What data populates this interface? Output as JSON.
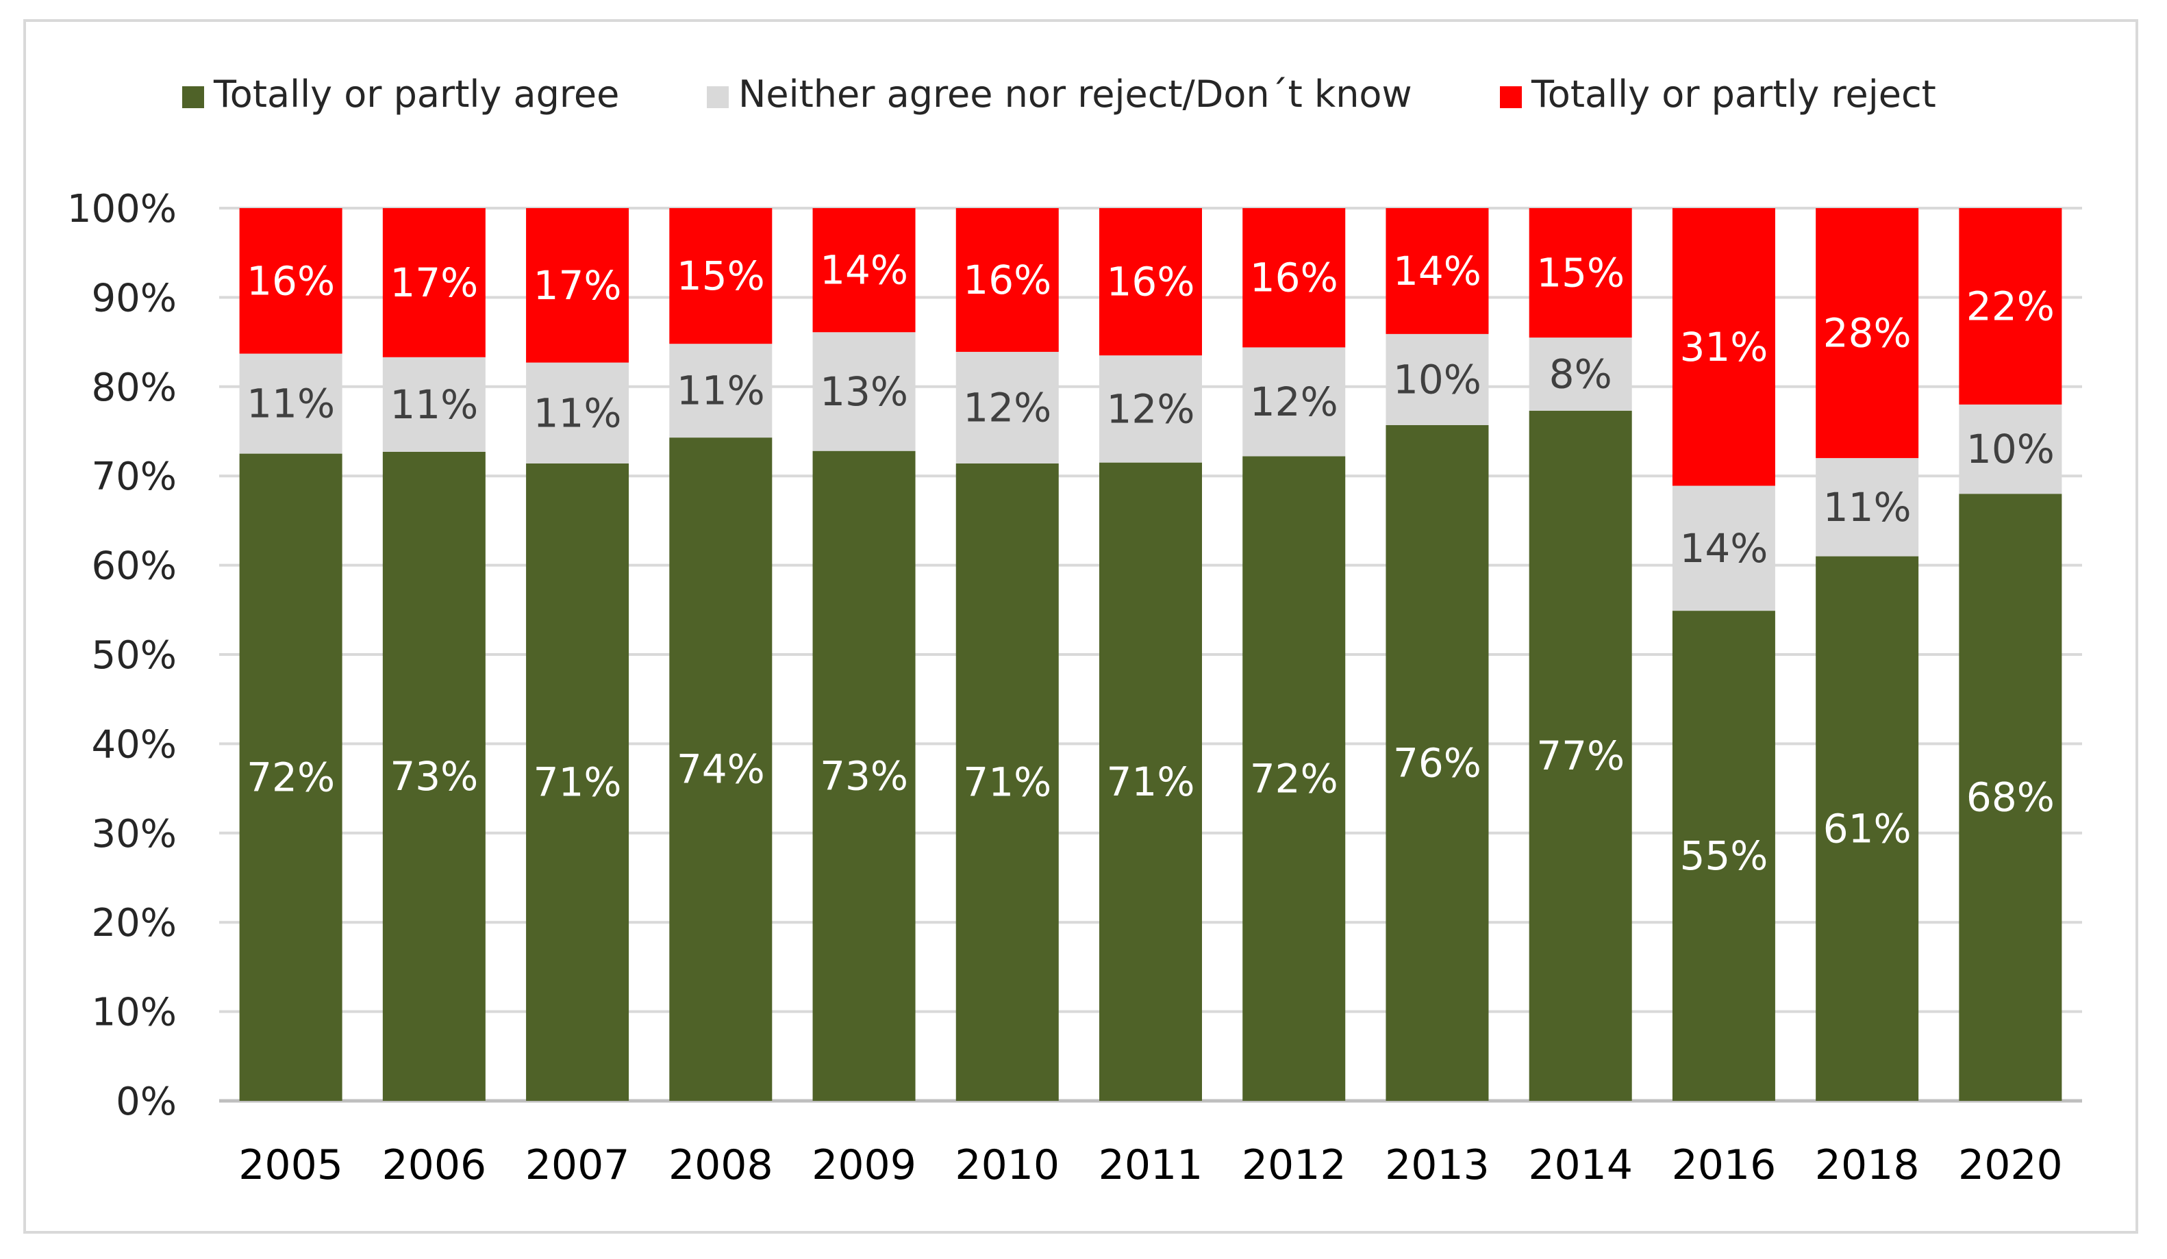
{
  "chart_data": {
    "type": "bar",
    "stacked": true,
    "title": "",
    "xlabel": "",
    "ylabel": "",
    "ylim": [
      0,
      100
    ],
    "ytick_labels": [
      "0%",
      "10%",
      "20%",
      "30%",
      "40%",
      "50%",
      "60%",
      "70%",
      "80%",
      "90%",
      "100%"
    ],
    "grid": true,
    "legend_position": "top",
    "categories": [
      "2005",
      "2006",
      "2007",
      "2008",
      "2009",
      "2010",
      "2011",
      "2012",
      "2013",
      "2014",
      "2016",
      "2018",
      "2020"
    ],
    "series": [
      {
        "name": "Totally or partly agree",
        "color": "#4f6228",
        "label_color": "#ffffff",
        "values": [
          72.5,
          72.7,
          71.4,
          74.3,
          72.8,
          71.4,
          71.5,
          72.2,
          75.7,
          77.3,
          54.9,
          61.0,
          68.0
        ],
        "labels": [
          "72%",
          "73%",
          "71%",
          "74%",
          "73%",
          "71%",
          "71%",
          "72%",
          "76%",
          "77%",
          "55%",
          "61%",
          "68%"
        ]
      },
      {
        "name": "Neither agree nor reject/Don´t know",
        "color": "#d9d9d9",
        "label_color": "#404040",
        "values": [
          11.2,
          10.6,
          11.3,
          10.5,
          13.3,
          12.5,
          12.0,
          12.2,
          10.2,
          8.2,
          14.0,
          11.0,
          10.0
        ],
        "labels": [
          "11%",
          "11%",
          "11%",
          "11%",
          "13%",
          "12%",
          "12%",
          "12%",
          "10%",
          "8%",
          "14%",
          "11%",
          "10%"
        ]
      },
      {
        "name": "Totally or partly reject",
        "color": "#ff0000",
        "label_color": "#ffffff",
        "values": [
          16.3,
          16.7,
          17.3,
          15.2,
          13.9,
          16.1,
          16.5,
          15.6,
          14.1,
          14.5,
          31.1,
          28.0,
          22.0
        ],
        "labels": [
          "16%",
          "17%",
          "17%",
          "15%",
          "14%",
          "16%",
          "16%",
          "16%",
          "14%",
          "15%",
          "31%",
          "28%",
          "22%"
        ]
      }
    ]
  }
}
